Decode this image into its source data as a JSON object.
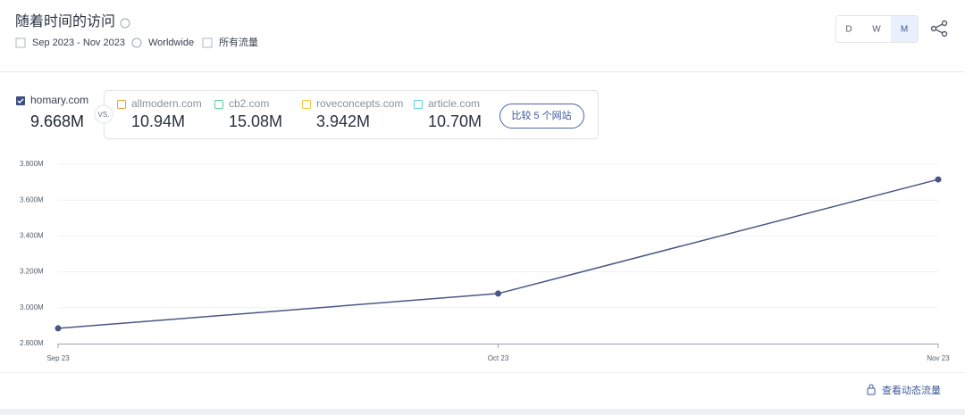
{
  "header": {
    "title": "随着时间的访问",
    "date_range": "Sep 2023 - Nov 2023",
    "region": "Worldwide",
    "traffic": "所有流量",
    "granularity": [
      "D",
      "W",
      "M"
    ]
  },
  "main_site": {
    "value": "9.668M"
  },
  "vs": "VS.",
  "competitors": [
    {
      "name": "allmodern.com",
      "value": "10.94M",
      "color": "#e8a43a"
    },
    {
      "name": "cb2.com",
      "value": "15.08M",
      "color": "#5fcf9a"
    },
    {
      "name": "roveconcepts.com",
      "value": "3.942M",
      "color": "#f0cc3a"
    },
    {
      "name": "article.com",
      "value": "10.70M",
      "color": "#5fd4d8"
    }
  ],
  "compare_button": "比较 5 个网站",
  "footer_link": "查看动态流量",
  "chart_data": {
    "type": "line",
    "categories": [
      "Sep 23",
      "Oct 23",
      "Nov 23"
    ],
    "series": [
      {
        "name": "homary.com",
        "color": "#4a5786",
        "values": [
          2885000,
          3079000,
          3715000
        ]
      }
    ],
    "ylim": [
      2800000,
      3800000
    ],
    "yticks": [
      {
        "value": 2800000,
        "label": "2.800M"
      },
      {
        "value": 3000000,
        "label": "3.000M"
      },
      {
        "value": 3200000,
        "label": "3.200M"
      },
      {
        "value": 3400000,
        "label": "3.400M"
      },
      {
        "value": 3600000,
        "label": "3.600M"
      },
      {
        "value": 3800000,
        "label": "3.800M"
      }
    ],
    "grid": true
  }
}
